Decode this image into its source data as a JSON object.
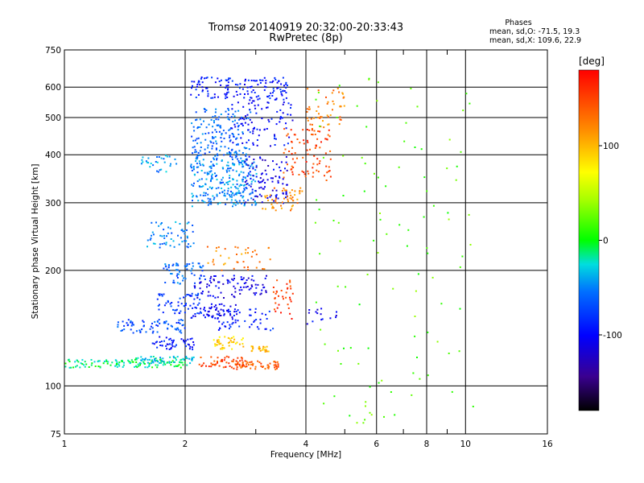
{
  "chart_data": {
    "type": "scatter",
    "title": "Tromsø 20140919 20:32:00-20:33:43",
    "subtitle": "RwPretec (8p)",
    "xlabel": "Frequency [MHz]",
    "ylabel": "Stationary phase Virtual Height [km]",
    "x_scale": "log",
    "y_scale": "log",
    "xlim": [
      1,
      16
    ],
    "ylim": [
      75,
      750
    ],
    "x_ticks": [
      1,
      2,
      4,
      6,
      8,
      10,
      16
    ],
    "x_tick_labels": [
      "1",
      "2",
      "4",
      "6",
      "8",
      "10",
      "16"
    ],
    "x_minor_ticks": [
      3,
      5,
      7,
      9
    ],
    "y_ticks": [
      75,
      100,
      200,
      300,
      400,
      500,
      600,
      750
    ],
    "y_tick_labels": [
      "75",
      "100",
      "200",
      "300",
      "400",
      "500",
      "600",
      "750"
    ],
    "grid": true,
    "phases": {
      "title": "Phases",
      "line_o": "mean, sd,O: -71.5, 19.3",
      "line_x": "mean, sd,X: 109.6, 22.9"
    },
    "colorbar": {
      "title": "[deg]",
      "range": [
        -180,
        180
      ],
      "ticks": [
        100,
        0,
        -100
      ],
      "tick_labels": [
        "100",
        "0",
        "-100"
      ]
    },
    "traces": [
      {
        "x0": 1.0,
        "x1": 2.05,
        "y0": 112,
        "y1": 118,
        "phase": -10,
        "n": 120
      },
      {
        "x0": 1.5,
        "x1": 2.1,
        "y0": 115,
        "y1": 120,
        "phase": -30,
        "n": 60
      },
      {
        "x0": 1.35,
        "x1": 2.0,
        "y0": 138,
        "y1": 150,
        "phase": -70,
        "n": 70
      },
      {
        "x0": 1.65,
        "x1": 2.1,
        "y0": 125,
        "y1": 135,
        "phase": -95,
        "n": 50
      },
      {
        "x0": 1.7,
        "x1": 2.2,
        "y0": 155,
        "y1": 175,
        "phase": -80,
        "n": 60
      },
      {
        "x0": 1.75,
        "x1": 2.25,
        "y0": 185,
        "y1": 210,
        "phase": -60,
        "n": 60
      },
      {
        "x0": 1.6,
        "x1": 2.1,
        "y0": 230,
        "y1": 270,
        "phase": -50,
        "n": 60
      },
      {
        "x0": 1.55,
        "x1": 1.9,
        "y0": 360,
        "y1": 400,
        "phase": -45,
        "n": 30
      },
      {
        "x0": 2.05,
        "x1": 2.7,
        "y0": 150,
        "y1": 165,
        "phase": -105,
        "n": 60
      },
      {
        "x0": 2.1,
        "x1": 3.2,
        "y0": 170,
        "y1": 195,
        "phase": -110,
        "n": 90
      },
      {
        "x0": 2.4,
        "x1": 3.3,
        "y0": 140,
        "y1": 160,
        "phase": -90,
        "n": 50
      },
      {
        "x0": 2.15,
        "x1": 2.8,
        "y0": 112,
        "y1": 120,
        "phase": 150,
        "n": 50
      },
      {
        "x0": 2.6,
        "x1": 3.4,
        "y0": 111,
        "y1": 117,
        "phase": 140,
        "n": 60
      },
      {
        "x0": 2.3,
        "x1": 2.8,
        "y0": 125,
        "y1": 135,
        "phase": 90,
        "n": 40
      },
      {
        "x0": 2.9,
        "x1": 3.25,
        "y0": 123,
        "y1": 128,
        "phase": 100,
        "n": 25
      },
      {
        "x0": 3.3,
        "x1": 3.7,
        "y0": 150,
        "y1": 190,
        "phase": 155,
        "n": 35
      },
      {
        "x0": 2.25,
        "x1": 3.3,
        "y0": 200,
        "y1": 235,
        "phase": 120,
        "n": 40
      },
      {
        "x0": 2.05,
        "x1": 3.0,
        "y0": 295,
        "y1": 390,
        "phase": -50,
        "n": 260
      },
      {
        "x0": 2.05,
        "x1": 2.9,
        "y0": 390,
        "y1": 530,
        "phase": -60,
        "n": 180
      },
      {
        "x0": 2.05,
        "x1": 3.6,
        "y0": 560,
        "y1": 640,
        "phase": -90,
        "n": 140
      },
      {
        "x0": 2.6,
        "x1": 3.7,
        "y0": 420,
        "y1": 560,
        "phase": -100,
        "n": 90
      },
      {
        "x0": 2.8,
        "x1": 3.6,
        "y0": 300,
        "y1": 400,
        "phase": -110,
        "n": 90
      },
      {
        "x0": 3.1,
        "x1": 3.9,
        "y0": 285,
        "y1": 330,
        "phase": 120,
        "n": 50
      },
      {
        "x0": 3.5,
        "x1": 4.6,
        "y0": 340,
        "y1": 470,
        "phase": 150,
        "n": 90
      },
      {
        "x0": 4.0,
        "x1": 5.0,
        "y0": 470,
        "y1": 600,
        "phase": 125,
        "n": 50
      },
      {
        "x0": 4.0,
        "x1": 4.8,
        "y0": 140,
        "y1": 160,
        "phase": -105,
        "n": 15
      },
      {
        "x0": 4.2,
        "x1": 10.5,
        "y0": 80,
        "y1": 640,
        "phase": 20,
        "n": 110
      }
    ]
  }
}
